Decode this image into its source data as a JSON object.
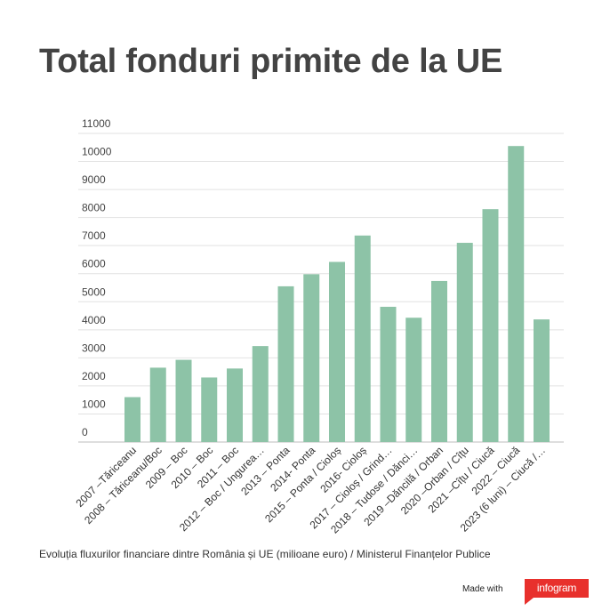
{
  "chart_data": {
    "type": "bar",
    "title": "Total fonduri primite de la UE",
    "caption": "Evoluția fluxurilor financiare dintre România și UE (milioane euro) / Ministerul Finanțelor Publice",
    "categories": [
      "2007 –Tăriceanu",
      "2008 – Tăriceanu/Boc",
      "2009 – Boc",
      "2010 – Boc",
      "2011 – Boc",
      "2012 – Boc / Ungurea…",
      "2013 – Ponta",
      "2014- Ponta",
      "2015 – Ponta / Cioloș",
      "2016- Cioloș",
      "2017 – Cioloș / Grind…",
      "2018 – Tudose / Dănci…",
      "2019 –Dăncilă / Orban",
      "2020 –Orban / Cîțu",
      "2021 –Cîțu / Ciucă",
      "2022 – Ciucă",
      "2023 (6 luni) – Ciucă /…"
    ],
    "values": [
      1600,
      2650,
      2930,
      2300,
      2620,
      3420,
      5550,
      5980,
      6420,
      7360,
      4820,
      4430,
      5740,
      7100,
      8300,
      10550,
      4370
    ],
    "y_ticks": [
      "0",
      "1000",
      "2000",
      "3000",
      "4000",
      "5000",
      "6000",
      "7000",
      "8000",
      "9000",
      "10000",
      "11000"
    ],
    "ylim": [
      0,
      11000
    ],
    "grid": true,
    "bar_color": "#8dc3a7",
    "xlabel": "",
    "ylabel": ""
  },
  "footer": {
    "made_with": "Made with",
    "brand": "infogram",
    "brand_color": "#e8302c"
  }
}
